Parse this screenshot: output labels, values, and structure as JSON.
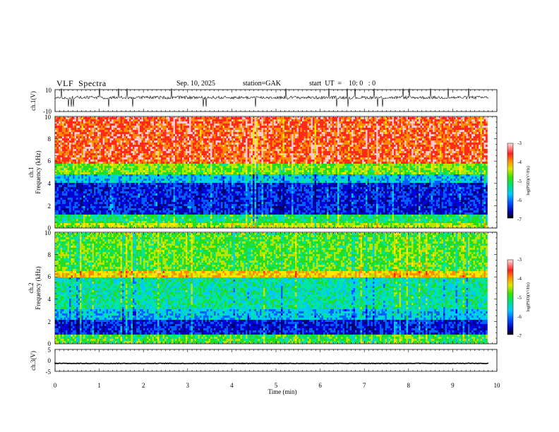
{
  "header": {
    "title": "VLF  Spectra",
    "date": "Sep. 10, 2025",
    "station": "station=GAK",
    "start": "start  UT  =    10: 0   : 0"
  },
  "chart_data": [
    {
      "type": "line",
      "panel": "ch1-waveform",
      "ylabel": "ch.1(V)",
      "ylim": [
        -10,
        10
      ],
      "y_ticks": [
        "10",
        "-10"
      ],
      "baseline": 3,
      "color": "#000000"
    },
    {
      "type": "heatmap",
      "panel": "ch1-spectrogram",
      "ylabel_line1": "ch.1",
      "ylabel_line2": "Frequency  (kHz)",
      "ylim": [
        0,
        10
      ],
      "y_ticks": [
        "0",
        "2",
        "4",
        "6",
        "8",
        "10"
      ],
      "colorbar_label": "log(PSD)(V²/Hz)",
      "colorbar_ticks": [
        "-3",
        "-4",
        "-5",
        "-6",
        "-7"
      ],
      "colorbar_range": [
        -7,
        -3
      ]
    },
    {
      "type": "heatmap",
      "panel": "ch2-spectrogram",
      "ylabel_line1": "ch.2",
      "ylabel_line2": "Frequency  (kHz)",
      "ylim": [
        0,
        10
      ],
      "y_ticks": [
        "0",
        "2",
        "4",
        "6",
        "8",
        "10"
      ],
      "colorbar_label": "log(PSD)(V²/Hz)",
      "colorbar_ticks": [
        "-3",
        "-4",
        "-5",
        "-6",
        "-7"
      ],
      "colorbar_range": [
        -7,
        -3
      ]
    },
    {
      "type": "line",
      "panel": "ch3-waveform",
      "ylabel": "ch.3(V)",
      "ylim": [
        -5,
        5
      ],
      "y_ticks": [
        "5",
        "0",
        "-5"
      ],
      "baseline": -1.5,
      "color": "#000000"
    }
  ],
  "x_axis": {
    "label": "Time  (min)",
    "range": [
      0,
      10
    ],
    "data_end": 9.82,
    "ticks": [
      "0",
      "1",
      "2",
      "3",
      "4",
      "5",
      "6",
      "7",
      "8",
      "9",
      "10"
    ]
  },
  "colorscale": [
    "#00006e",
    "#0000d8",
    "#0060ff",
    "#00c8ff",
    "#00e6a0",
    "#22dd22",
    "#b4e600",
    "#ffe600",
    "#ff8c00",
    "#ff2a1a",
    "#ffc8c8"
  ]
}
